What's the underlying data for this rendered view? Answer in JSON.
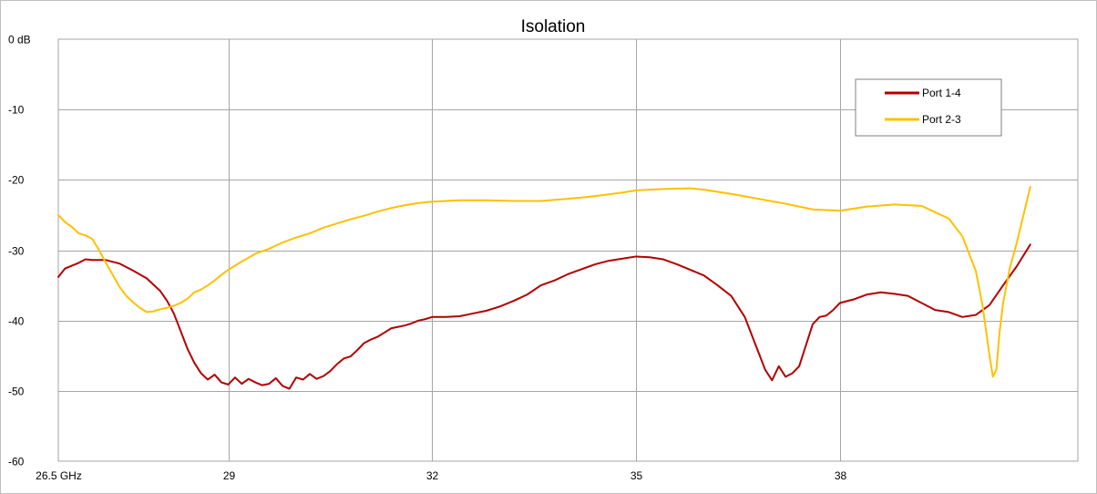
{
  "chart_data": {
    "type": "line",
    "title": "Isolation",
    "xlabel": "",
    "ylabel": "",
    "xlim": [
      26.5,
      41.5
    ],
    "ylim": [
      -60,
      0
    ],
    "grid": true,
    "legend_position": "top-right",
    "x_ticks": [
      {
        "value": 26.5,
        "label": "26.5 GHz"
      },
      {
        "value": 29,
        "label": "29"
      },
      {
        "value": 32,
        "label": "32"
      },
      {
        "value": 35,
        "label": "35"
      },
      {
        "value": 38,
        "label": "38"
      }
    ],
    "y_ticks": [
      {
        "value": 0,
        "label": "0 dB"
      },
      {
        "value": -10,
        "label": "-10"
      },
      {
        "value": -20,
        "label": "-20"
      },
      {
        "value": -30,
        "label": "-30"
      },
      {
        "value": -40,
        "label": "-40"
      },
      {
        "value": -50,
        "label": "-50"
      },
      {
        "value": -60,
        "label": "-60"
      }
    ],
    "series": [
      {
        "name": "Port 1-4",
        "color": "#b30000",
        "points": [
          [
            26.5,
            -33.8
          ],
          [
            26.6,
            -32.6
          ],
          [
            26.8,
            -31.8
          ],
          [
            26.9,
            -31.3
          ],
          [
            27.0,
            -31.4
          ],
          [
            27.2,
            -31.4
          ],
          [
            27.4,
            -31.9
          ],
          [
            27.6,
            -32.9
          ],
          [
            27.8,
            -34.0
          ],
          [
            28.0,
            -35.8
          ],
          [
            28.1,
            -37.2
          ],
          [
            28.2,
            -39.0
          ],
          [
            28.3,
            -41.5
          ],
          [
            28.4,
            -44.0
          ],
          [
            28.5,
            -46.0
          ],
          [
            28.6,
            -47.5
          ],
          [
            28.7,
            -48.4
          ],
          [
            28.8,
            -47.7
          ],
          [
            28.9,
            -48.8
          ],
          [
            29.0,
            -49.1
          ],
          [
            29.1,
            -48.1
          ],
          [
            29.2,
            -49.0
          ],
          [
            29.3,
            -48.3
          ],
          [
            29.4,
            -48.8
          ],
          [
            29.5,
            -49.2
          ],
          [
            29.6,
            -49.0
          ],
          [
            29.7,
            -48.2
          ],
          [
            29.8,
            -49.3
          ],
          [
            29.9,
            -49.7
          ],
          [
            30.0,
            -48.1
          ],
          [
            30.1,
            -48.4
          ],
          [
            30.2,
            -47.6
          ],
          [
            30.3,
            -48.3
          ],
          [
            30.4,
            -47.9
          ],
          [
            30.5,
            -47.2
          ],
          [
            30.6,
            -46.2
          ],
          [
            30.7,
            -45.4
          ],
          [
            30.8,
            -45.1
          ],
          [
            30.9,
            -44.2
          ],
          [
            31.0,
            -43.2
          ],
          [
            31.1,
            -42.7
          ],
          [
            31.2,
            -42.3
          ],
          [
            31.3,
            -41.7
          ],
          [
            31.4,
            -41.1
          ],
          [
            31.5,
            -40.9
          ],
          [
            31.6,
            -40.7
          ],
          [
            31.7,
            -40.4
          ],
          [
            31.8,
            -40.0
          ],
          [
            31.9,
            -39.8
          ],
          [
            32.0,
            -39.5
          ],
          [
            32.2,
            -39.5
          ],
          [
            32.4,
            -39.4
          ],
          [
            32.6,
            -39.0
          ],
          [
            32.8,
            -38.6
          ],
          [
            33.0,
            -38.0
          ],
          [
            33.2,
            -37.2
          ],
          [
            33.4,
            -36.3
          ],
          [
            33.6,
            -35.0
          ],
          [
            33.8,
            -34.3
          ],
          [
            34.0,
            -33.4
          ],
          [
            34.2,
            -32.7
          ],
          [
            34.4,
            -32.0
          ],
          [
            34.6,
            -31.5
          ],
          [
            34.8,
            -31.2
          ],
          [
            35.0,
            -30.9
          ],
          [
            35.2,
            -31.0
          ],
          [
            35.4,
            -31.3
          ],
          [
            35.6,
            -32.0
          ],
          [
            35.8,
            -32.8
          ],
          [
            36.0,
            -33.6
          ],
          [
            36.2,
            -35.0
          ],
          [
            36.4,
            -36.5
          ],
          [
            36.6,
            -39.5
          ],
          [
            36.7,
            -42.0
          ],
          [
            36.8,
            -44.5
          ],
          [
            36.9,
            -47.0
          ],
          [
            37.0,
            -48.5
          ],
          [
            37.1,
            -46.5
          ],
          [
            37.2,
            -48.0
          ],
          [
            37.3,
            -47.5
          ],
          [
            37.4,
            -46.5
          ],
          [
            37.5,
            -43.5
          ],
          [
            37.6,
            -40.5
          ],
          [
            37.7,
            -39.5
          ],
          [
            37.8,
            -39.3
          ],
          [
            37.9,
            -38.5
          ],
          [
            38.0,
            -37.5
          ],
          [
            38.2,
            -37.0
          ],
          [
            38.4,
            -36.3
          ],
          [
            38.6,
            -36.0
          ],
          [
            38.8,
            -36.2
          ],
          [
            39.0,
            -36.5
          ],
          [
            39.2,
            -37.5
          ],
          [
            39.4,
            -38.5
          ],
          [
            39.6,
            -38.8
          ],
          [
            39.8,
            -39.5
          ],
          [
            40.0,
            -39.2
          ],
          [
            40.2,
            -37.8
          ],
          [
            40.4,
            -35.0
          ],
          [
            40.6,
            -32.3
          ],
          [
            40.8,
            -29.2
          ]
        ]
      },
      {
        "name": "Port 2-3",
        "color": "#ffc000",
        "points": [
          [
            26.5,
            -25.0
          ],
          [
            26.6,
            -26.0
          ],
          [
            26.7,
            -26.7
          ],
          [
            26.8,
            -27.6
          ],
          [
            26.9,
            -27.9
          ],
          [
            27.0,
            -28.4
          ],
          [
            27.1,
            -30.0
          ],
          [
            27.2,
            -31.8
          ],
          [
            27.3,
            -33.5
          ],
          [
            27.4,
            -35.2
          ],
          [
            27.5,
            -36.5
          ],
          [
            27.6,
            -37.4
          ],
          [
            27.7,
            -38.2
          ],
          [
            27.8,
            -38.8
          ],
          [
            27.9,
            -38.7
          ],
          [
            28.0,
            -38.4
          ],
          [
            28.1,
            -38.2
          ],
          [
            28.2,
            -37.9
          ],
          [
            28.3,
            -37.5
          ],
          [
            28.4,
            -36.9
          ],
          [
            28.5,
            -36.0
          ],
          [
            28.6,
            -35.6
          ],
          [
            28.7,
            -35.0
          ],
          [
            28.8,
            -34.3
          ],
          [
            28.9,
            -33.5
          ],
          [
            29.0,
            -32.8
          ],
          [
            29.2,
            -31.6
          ],
          [
            29.4,
            -30.5
          ],
          [
            29.6,
            -29.8
          ],
          [
            29.8,
            -28.9
          ],
          [
            30.0,
            -28.2
          ],
          [
            30.2,
            -27.6
          ],
          [
            30.4,
            -26.8
          ],
          [
            30.6,
            -26.2
          ],
          [
            30.8,
            -25.6
          ],
          [
            31.0,
            -25.1
          ],
          [
            31.2,
            -24.5
          ],
          [
            31.4,
            -24.0
          ],
          [
            31.6,
            -23.6
          ],
          [
            31.8,
            -23.3
          ],
          [
            32.0,
            -23.1
          ],
          [
            32.4,
            -22.9
          ],
          [
            32.8,
            -22.9
          ],
          [
            33.2,
            -23.0
          ],
          [
            33.6,
            -23.0
          ],
          [
            34.0,
            -22.7
          ],
          [
            34.4,
            -22.3
          ],
          [
            34.8,
            -21.8
          ],
          [
            35.0,
            -21.5
          ],
          [
            35.4,
            -21.3
          ],
          [
            35.8,
            -21.2
          ],
          [
            36.0,
            -21.4
          ],
          [
            36.4,
            -22.0
          ],
          [
            36.8,
            -22.7
          ],
          [
            37.2,
            -23.4
          ],
          [
            37.6,
            -24.2
          ],
          [
            38.0,
            -24.4
          ],
          [
            38.4,
            -23.8
          ],
          [
            38.8,
            -23.5
          ],
          [
            39.2,
            -23.7
          ],
          [
            39.6,
            -25.5
          ],
          [
            39.8,
            -28.0
          ],
          [
            40.0,
            -33.0
          ],
          [
            40.1,
            -38.0
          ],
          [
            40.2,
            -45.0
          ],
          [
            40.25,
            -48.0
          ],
          [
            40.3,
            -47.0
          ],
          [
            40.35,
            -41.5
          ],
          [
            40.4,
            -37.5
          ],
          [
            40.5,
            -32.5
          ],
          [
            40.6,
            -29.0
          ],
          [
            40.7,
            -25.0
          ],
          [
            40.8,
            -21.0
          ]
        ]
      }
    ]
  }
}
